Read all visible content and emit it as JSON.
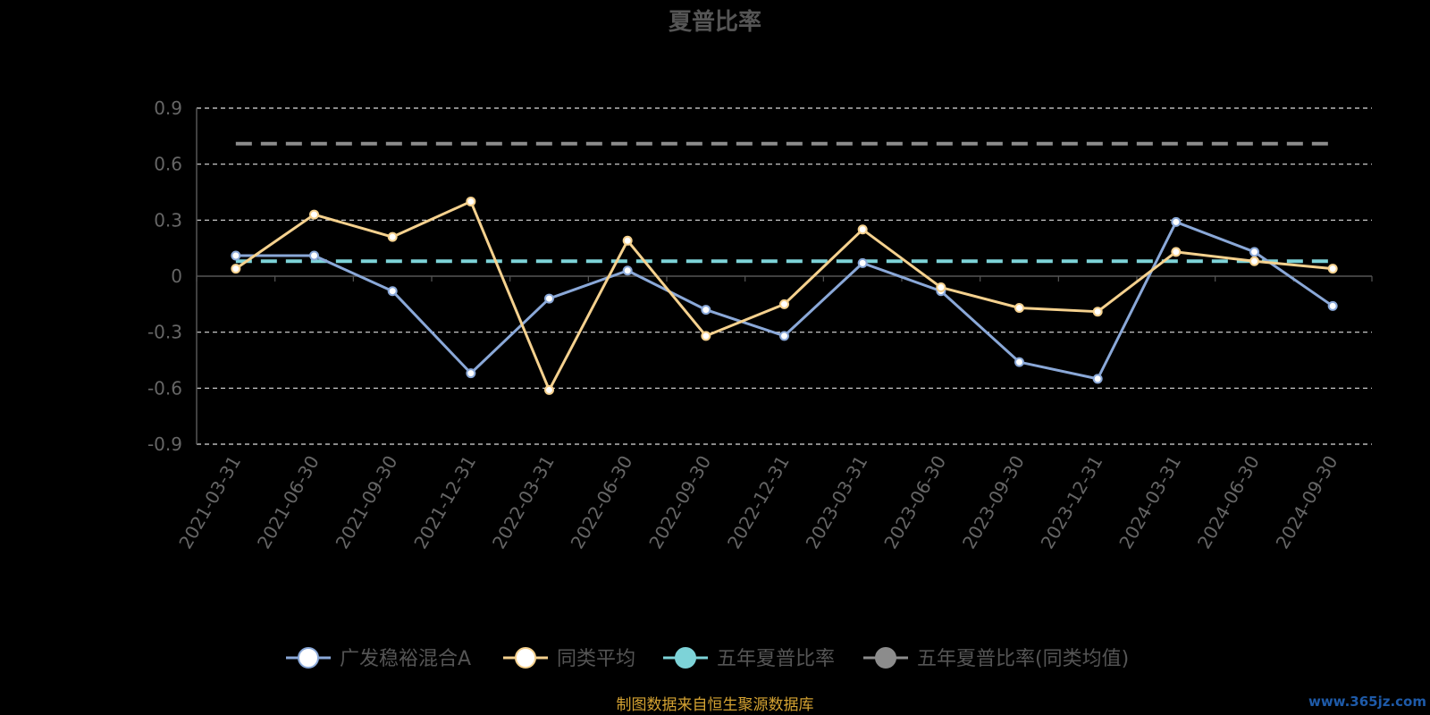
{
  "chart_data": {
    "type": "line",
    "title": "夏普比率",
    "categories": [
      "2021-03-31",
      "2021-06-30",
      "2021-09-30",
      "2021-12-31",
      "2022-03-31",
      "2022-06-30",
      "2022-09-30",
      "2022-12-31",
      "2023-03-31",
      "2023-06-30",
      "2023-09-30",
      "2023-12-31",
      "2024-03-31",
      "2024-06-30",
      "2024-09-30"
    ],
    "ylim": [
      -0.9,
      0.9
    ],
    "yticks": [
      "0.9",
      "0.6",
      "0.3",
      "0",
      "-0.3",
      "-0.6",
      "-0.9"
    ],
    "grid": true,
    "legend_position": "bottom",
    "series": [
      {
        "name": "广发稳裕混合A",
        "style": "solid",
        "color": "#8aa8d8",
        "values": [
          0.11,
          0.11,
          -0.08,
          -0.52,
          -0.12,
          0.03,
          -0.18,
          -0.32,
          0.07,
          -0.08,
          -0.46,
          -0.55,
          0.29,
          0.13,
          -0.16
        ]
      },
      {
        "name": "同类平均",
        "style": "solid",
        "color": "#f5d18e",
        "values": [
          0.04,
          0.33,
          0.21,
          0.4,
          -0.61,
          0.19,
          -0.32,
          -0.15,
          0.25,
          -0.06,
          -0.17,
          -0.19,
          0.13,
          0.08,
          0.04
        ]
      },
      {
        "name": "五年夏普比率",
        "style": "dashed",
        "color": "#7dd3d8",
        "values": [
          0.08,
          0.08,
          0.08,
          0.08,
          0.08,
          0.08,
          0.08,
          0.08,
          0.08,
          0.08,
          0.08,
          0.08,
          0.08,
          0.08,
          0.08
        ]
      },
      {
        "name": "五年夏普比率(同类均值)",
        "style": "dashed",
        "color": "#8c8c8c",
        "values": [
          0.71,
          0.71,
          0.71,
          0.71,
          0.71,
          0.71,
          0.71,
          0.71,
          0.71,
          0.71,
          0.71,
          0.71,
          0.71,
          0.71,
          0.71
        ]
      }
    ]
  },
  "footer": {
    "source": "制图数据来自恒生聚源数据库",
    "watermark": "www.365jz.com"
  }
}
